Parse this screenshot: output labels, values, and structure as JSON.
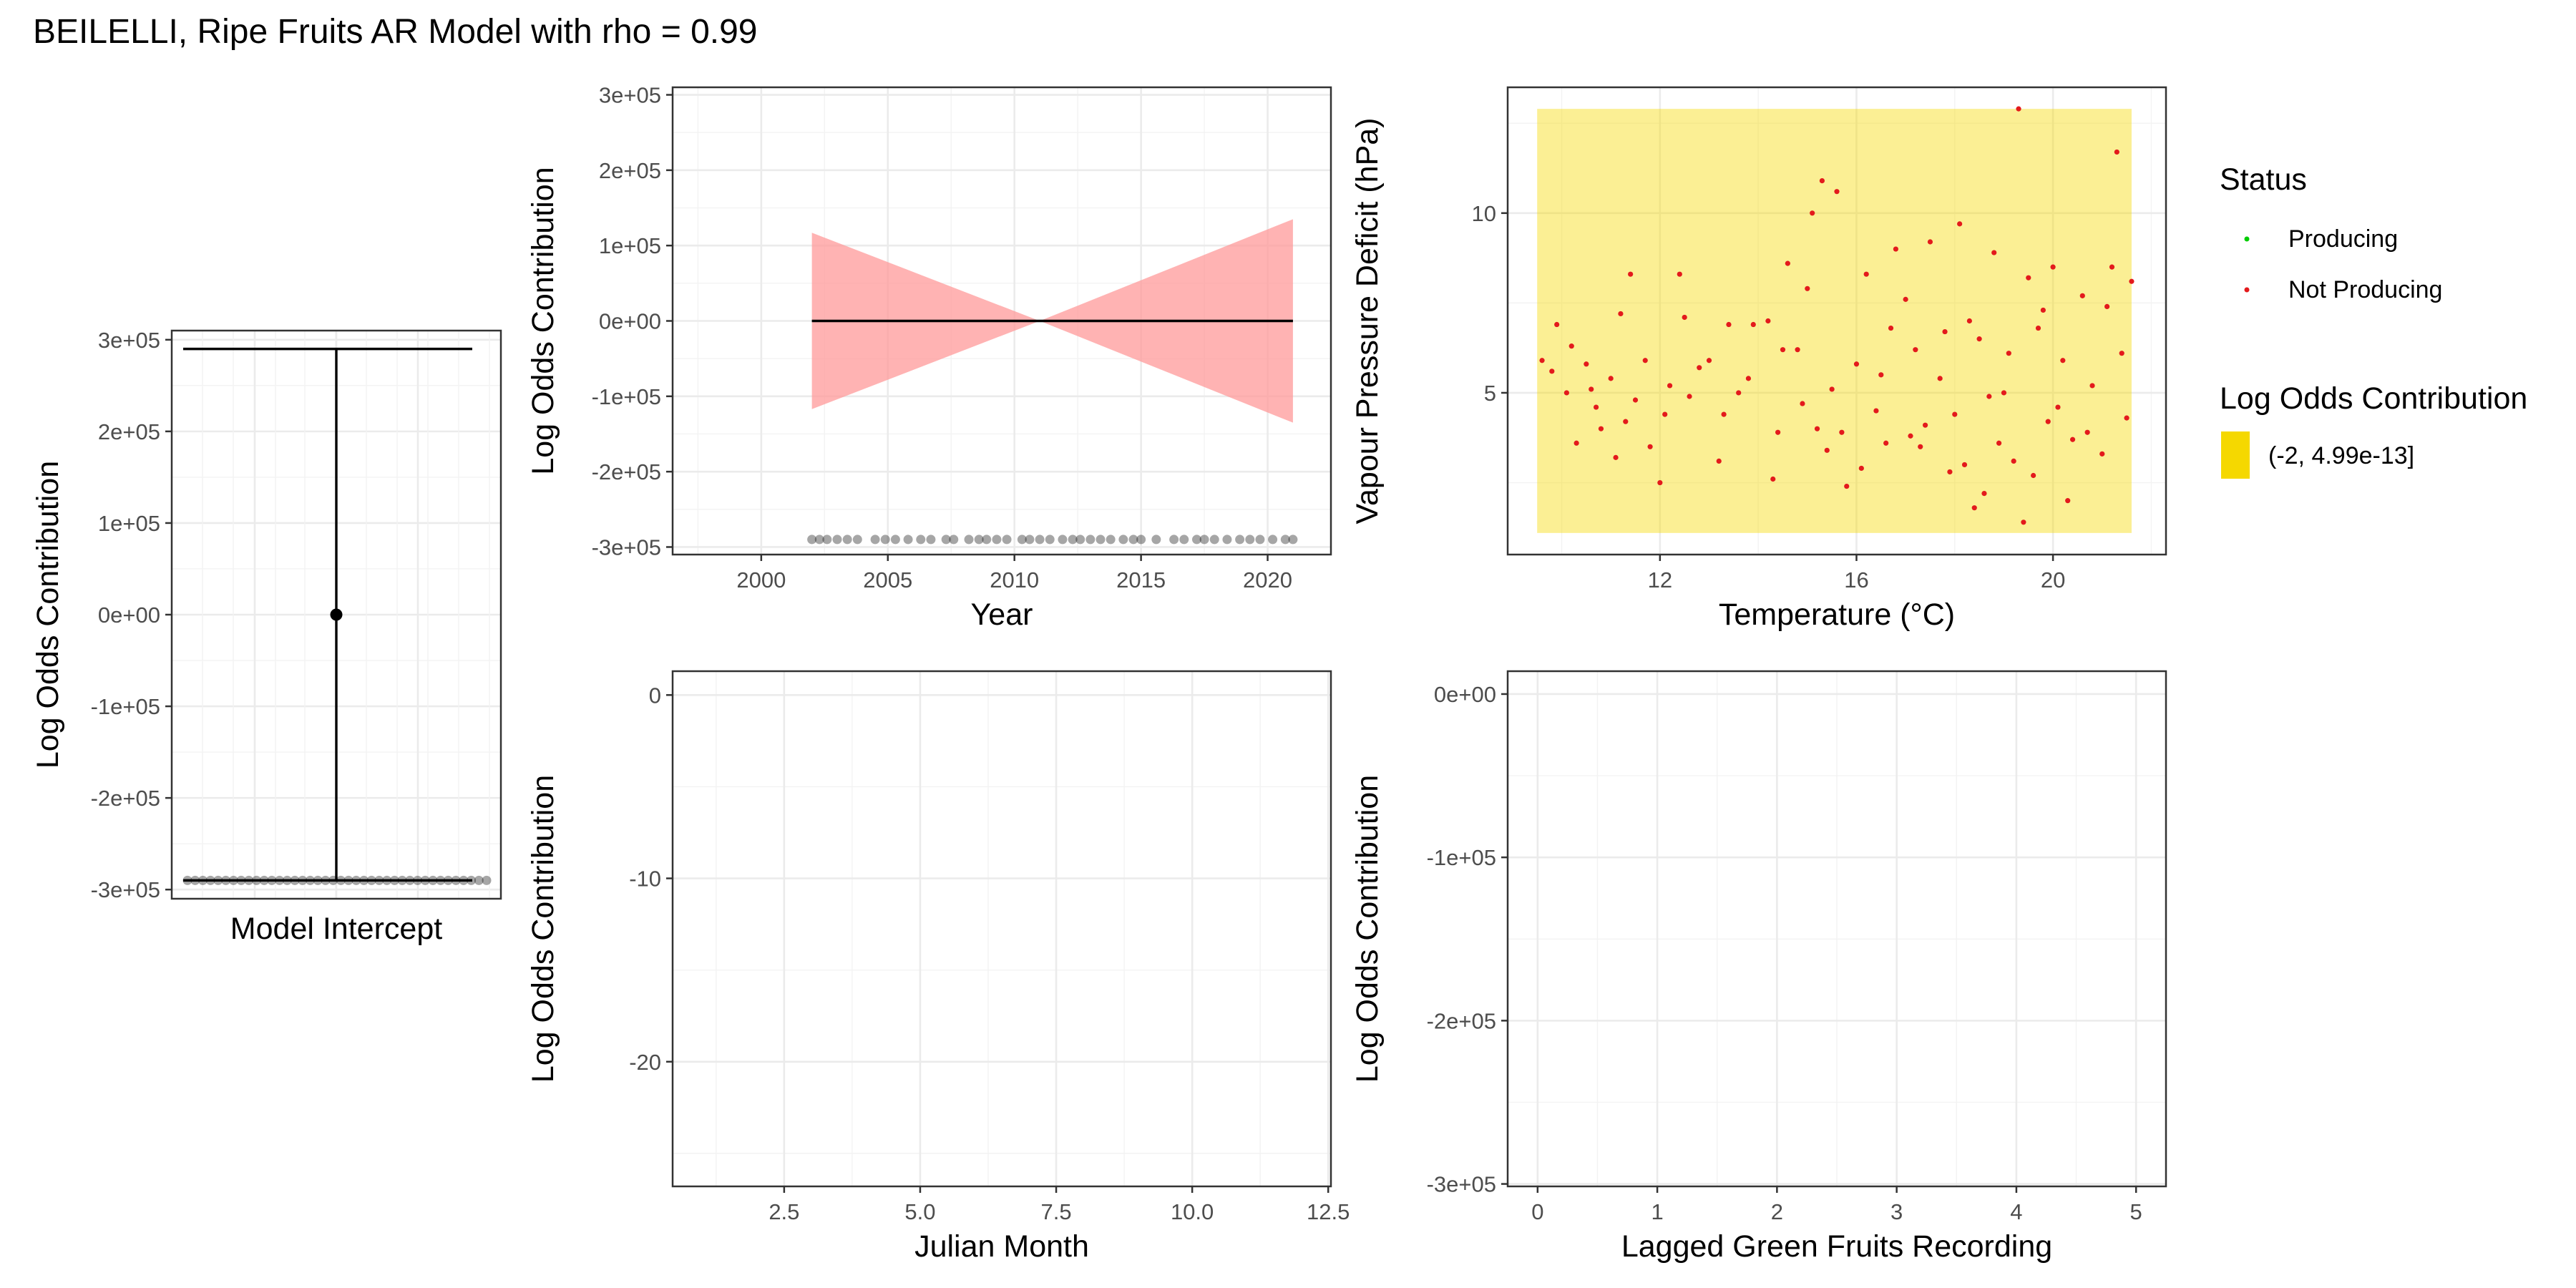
{
  "title": "BEILELLI, Ripe Fruits AR Model with rho = 0.99",
  "colors": {
    "ribbon": "#FF9999",
    "line": "#000000",
    "producing": "#00CC00",
    "not_producing": "#E31A1C",
    "log_odds_fill": "#F5D800",
    "panel_border": "#333333",
    "grid": "#EBEBEB"
  },
  "legend": {
    "status_title": "Status",
    "status_items": [
      {
        "label": "Producing",
        "color": "#00CC00"
      },
      {
        "label": "Not Producing",
        "color": "#E31A1C"
      }
    ],
    "fill_title": "Log Odds Contribution",
    "fill_items": [
      {
        "label": "(-2, 4.99e-13]",
        "color": "#F5D800"
      }
    ]
  },
  "chart_data": [
    {
      "id": "intercept",
      "type": "errorbar",
      "xlabel": "Model Intercept",
      "ylabel": "Log Odds Contribution",
      "ylim": [
        -310000,
        310000
      ],
      "yticks": [
        300000,
        200000,
        100000,
        0,
        -100000,
        -200000,
        -300000
      ],
      "ytick_labels": [
        "3e+05",
        "2e+05",
        "1e+05",
        "0e+00",
        "-1e+05",
        "-2e+05",
        "-3e+05"
      ],
      "estimate": 0,
      "upper": 290000,
      "lower": -290000,
      "rug_y": -290000,
      "rug_count": 40,
      "grid": true
    },
    {
      "id": "year",
      "type": "line",
      "xlabel": "Year",
      "ylabel": "Log Odds Contribution",
      "xlim": [
        1996.5,
        2022.5
      ],
      "ylim": [
        -310000,
        310000
      ],
      "xticks": [
        2000,
        2005,
        2010,
        2015,
        2020
      ],
      "xtick_labels": [
        "2000",
        "2005",
        "2010",
        "2015",
        "2020"
      ],
      "yticks": [
        300000,
        200000,
        100000,
        0,
        -100000,
        -200000,
        -300000
      ],
      "ytick_labels": [
        "3e+05",
        "2e+05",
        "1e+05",
        "0e+00",
        "-1e+05",
        "-2e+05",
        "-3e+05"
      ],
      "estimate": {
        "x": [
          2002,
          2021
        ],
        "y": [
          0,
          0
        ]
      },
      "ribbon": {
        "x": [
          2002,
          2011,
          2021
        ],
        "upper": [
          117000,
          0,
          135000
        ],
        "lower": [
          -117000,
          0,
          -135000
        ]
      },
      "rug_y": -290000,
      "rug_x": [
        2002.0,
        2002.3,
        2002.6,
        2003.0,
        2003.4,
        2003.8,
        2004.5,
        2004.9,
        2005.3,
        2005.8,
        2006.3,
        2006.7,
        2007.3,
        2007.6,
        2008.2,
        2008.6,
        2008.9,
        2009.3,
        2009.7,
        2010.3,
        2010.6,
        2011.0,
        2011.4,
        2011.9,
        2012.3,
        2012.6,
        2013.0,
        2013.4,
        2013.8,
        2014.3,
        2014.7,
        2015.0,
        2015.6,
        2016.3,
        2016.7,
        2017.2,
        2017.5,
        2017.9,
        2018.4,
        2018.9,
        2019.3,
        2019.7,
        2020.2,
        2020.7,
        2021.0
      ],
      "grid": true
    },
    {
      "id": "temperature",
      "type": "scatter",
      "xlabel": "Temperature (°C)",
      "ylabel": "Vapour Pressure Deficit (hPa)",
      "xlim": [
        8.9,
        22.3
      ],
      "ylim": [
        0.5,
        13.5
      ],
      "xticks": [
        12,
        16,
        20
      ],
      "xtick_labels": [
        "12",
        "16",
        "20"
      ],
      "yticks": [
        5,
        10
      ],
      "ytick_labels": [
        "5",
        "10"
      ],
      "tile": {
        "xmin": 9.5,
        "xmax": 21.6,
        "ymin": 1.1,
        "ymax": 12.9,
        "color": "#F5D800",
        "level": "(-2, 4.99e-13]"
      },
      "point_status": "Not Producing",
      "points": [
        [
          19.3,
          12.9
        ],
        [
          21.3,
          11.7
        ],
        [
          15.3,
          10.9
        ],
        [
          15.6,
          10.6
        ],
        [
          15.1,
          10.0
        ],
        [
          9.6,
          5.9
        ],
        [
          9.9,
          6.9
        ],
        [
          10.2,
          6.3
        ],
        [
          10.1,
          5.0
        ],
        [
          10.5,
          5.8
        ],
        [
          10.8,
          4.0
        ],
        [
          11.4,
          8.3
        ],
        [
          11.2,
          7.2
        ],
        [
          11.0,
          5.4
        ],
        [
          11.5,
          4.8
        ],
        [
          11.8,
          3.5
        ],
        [
          12.1,
          4.4
        ],
        [
          12.4,
          8.3
        ],
        [
          12.5,
          7.1
        ],
        [
          12.8,
          5.7
        ],
        [
          13.0,
          5.9
        ],
        [
          13.3,
          4.4
        ],
        [
          13.6,
          5.0
        ],
        [
          13.9,
          6.9
        ],
        [
          14.2,
          7.0
        ],
        [
          14.4,
          3.9
        ],
        [
          14.6,
          8.6
        ],
        [
          14.8,
          6.2
        ],
        [
          15.0,
          7.9
        ],
        [
          15.2,
          4.0
        ],
        [
          15.5,
          5.1
        ],
        [
          15.8,
          2.4
        ],
        [
          16.0,
          5.8
        ],
        [
          16.2,
          8.3
        ],
        [
          16.4,
          4.5
        ],
        [
          16.6,
          3.6
        ],
        [
          16.8,
          9.0
        ],
        [
          17.0,
          7.6
        ],
        [
          17.2,
          6.2
        ],
        [
          17.3,
          3.5
        ],
        [
          17.5,
          9.2
        ],
        [
          17.7,
          5.4
        ],
        [
          17.9,
          2.8
        ],
        [
          18.1,
          9.7
        ],
        [
          18.3,
          7.0
        ],
        [
          18.5,
          6.5
        ],
        [
          18.6,
          2.2
        ],
        [
          18.8,
          8.9
        ],
        [
          19.0,
          5.0
        ],
        [
          19.2,
          3.1
        ],
        [
          19.4,
          1.4
        ],
        [
          19.5,
          8.2
        ],
        [
          19.7,
          6.8
        ],
        [
          19.9,
          4.2
        ],
        [
          20.0,
          8.5
        ],
        [
          20.2,
          5.9
        ],
        [
          20.4,
          3.7
        ],
        [
          20.6,
          7.7
        ],
        [
          20.8,
          5.2
        ],
        [
          21.0,
          3.3
        ],
        [
          21.2,
          8.5
        ],
        [
          21.4,
          6.1
        ],
        [
          21.5,
          4.3
        ],
        [
          21.6,
          8.1
        ],
        [
          10.3,
          3.6
        ],
        [
          10.6,
          5.1
        ],
        [
          11.1,
          3.2
        ],
        [
          11.7,
          5.9
        ],
        [
          12.0,
          2.5
        ],
        [
          12.6,
          4.9
        ],
        [
          13.2,
          3.1
        ],
        [
          13.8,
          5.4
        ],
        [
          14.3,
          2.6
        ],
        [
          14.9,
          4.7
        ],
        [
          15.4,
          3.4
        ],
        [
          16.1,
          2.9
        ],
        [
          16.7,
          6.8
        ],
        [
          17.4,
          4.1
        ],
        [
          18.0,
          4.4
        ],
        [
          18.4,
          1.8
        ],
        [
          18.9,
          3.6
        ],
        [
          19.6,
          2.7
        ],
        [
          20.1,
          4.6
        ],
        [
          20.7,
          3.9
        ],
        [
          21.1,
          7.4
        ],
        [
          19.1,
          6.1
        ],
        [
          17.8,
          6.7
        ],
        [
          16.5,
          5.5
        ],
        [
          15.7,
          3.9
        ],
        [
          14.5,
          6.2
        ],
        [
          13.4,
          6.9
        ],
        [
          12.2,
          5.2
        ],
        [
          11.3,
          4.2
        ],
        [
          10.7,
          4.6
        ],
        [
          9.8,
          5.6
        ],
        [
          18.2,
          3.0
        ],
        [
          18.7,
          4.9
        ],
        [
          19.8,
          7.3
        ],
        [
          20.3,
          2.0
        ],
        [
          17.1,
          3.8
        ]
      ],
      "grid": true
    },
    {
      "id": "julian_month",
      "type": "line",
      "xlabel": "Julian Month",
      "ylabel": "Log Odds Contribution",
      "xlim": [
        0.45,
        12.55
      ],
      "ylim": [
        -26.8,
        1.3
      ],
      "xticks": [
        2.5,
        5.0,
        7.5,
        10.0,
        12.5
      ],
      "xtick_labels": [
        "2.5",
        "5.0",
        "7.5",
        "10.0",
        "12.5"
      ],
      "yticks": [
        0,
        -10,
        -20
      ],
      "ytick_labels": [
        "0",
        "-10",
        "-20"
      ],
      "series": [],
      "grid": true
    },
    {
      "id": "lagged_green_fruits",
      "type": "line",
      "xlabel": "Lagged Green Fruits Recording",
      "ylabel": "Log Odds Contribution",
      "xlim": [
        -0.25,
        5.25
      ],
      "ylim": [
        -301500,
        14000
      ],
      "xticks": [
        0,
        1,
        2,
        3,
        4,
        5
      ],
      "xtick_labels": [
        "0",
        "1",
        "2",
        "3",
        "4",
        "5"
      ],
      "yticks": [
        0,
        -100000,
        -200000,
        -300000
      ],
      "ytick_labels": [
        "0e+00",
        "-1e+05",
        "-2e+05",
        "-3e+05"
      ],
      "series": [],
      "grid": true
    }
  ]
}
